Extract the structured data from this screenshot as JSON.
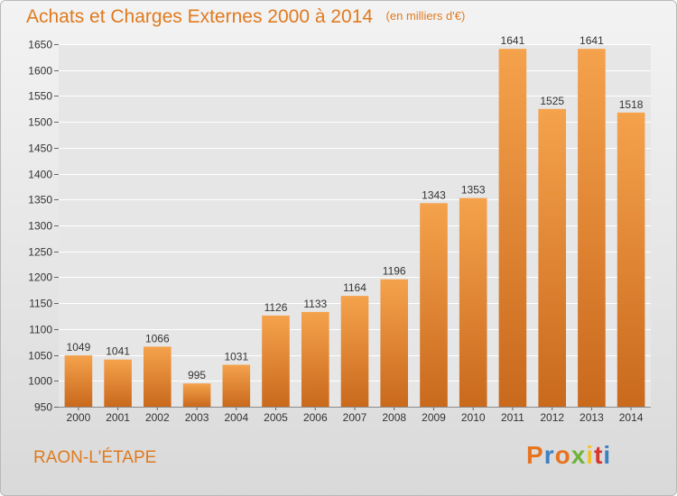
{
  "chart_data": {
    "type": "bar",
    "title": "Achats et Charges Externes 2000 à 2014",
    "unit": "(en milliers d'€)",
    "categories": [
      "2000",
      "2001",
      "2002",
      "2003",
      "2004",
      "2005",
      "2006",
      "2007",
      "2008",
      "2009",
      "2010",
      "2011",
      "2012",
      "2013",
      "2014"
    ],
    "values": [
      1049,
      1041,
      1066,
      995,
      1031,
      1126,
      1133,
      1164,
      1196,
      1343,
      1353,
      1641,
      1525,
      1641,
      1518
    ],
    "ylim": [
      950,
      1650
    ],
    "yticks": [
      950,
      1000,
      1050,
      1100,
      1150,
      1200,
      1250,
      1300,
      1350,
      1400,
      1450,
      1500,
      1550,
      1600,
      1650
    ],
    "grid": true,
    "xlabel": "",
    "ylabel": "",
    "bar_color_top": "#f5a24c",
    "bar_color_bottom": "#c9691c",
    "data_labels": true
  },
  "footer": {
    "commune": "RAON-L'ÉTAPE",
    "logo_text": "Proxiti",
    "logo_colors": [
      "#e8731e",
      "#3c7fc4",
      "#e8731e",
      "#6fb33b",
      "#f2c12e",
      "#d9352b",
      "#3c7fc4"
    ]
  },
  "colors": {
    "accent": "#e07a1e",
    "grid": "#ffffff",
    "axis_text": "#333333"
  }
}
